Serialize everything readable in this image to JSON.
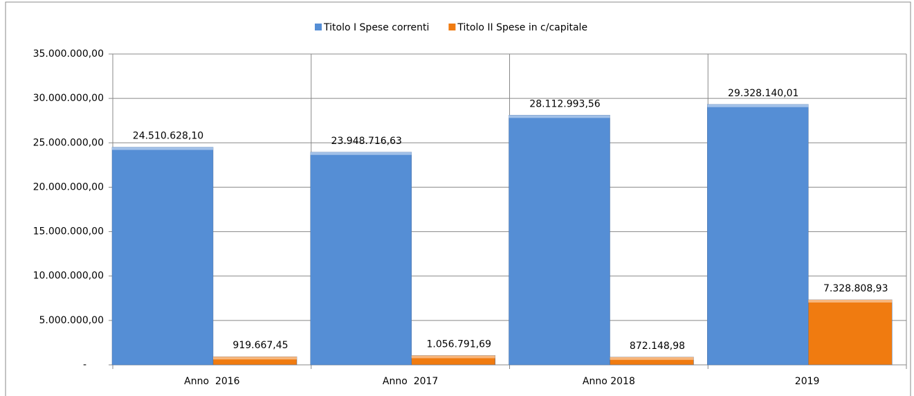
{
  "chart_data": {
    "type": "bar",
    "categories": [
      "Anno  2016",
      "Anno  2017",
      "Anno 2018",
      "2019"
    ],
    "series": [
      {
        "name": "Titolo I Spese correnti",
        "color": "#558ed5",
        "values": [
          24510628.1,
          23948716.63,
          28112993.56,
          29328140.01
        ],
        "value_labels": [
          "24.510.628,10",
          "23.948.716,63",
          "28.112.993,56",
          "29.328.140,01"
        ]
      },
      {
        "name": "Titolo II Spese in c/capitale",
        "color": "#f07b10",
        "values": [
          919667.45,
          1056791.69,
          872148.98,
          7328808.93
        ],
        "value_labels": [
          "919.667,45",
          "1.056.791,69",
          "872.148,98",
          "7.328.808,93"
        ]
      }
    ],
    "ylim": [
      0,
      35000000
    ],
    "yticks": [
      {
        "value": 0,
        "label": "-"
      },
      {
        "value": 5000000,
        "label": "5.000.000,00"
      },
      {
        "value": 10000000,
        "label": "10.000.000,00"
      },
      {
        "value": 15000000,
        "label": "15.000.000,00"
      },
      {
        "value": 20000000,
        "label": "20.000.000,00"
      },
      {
        "value": 25000000,
        "label": "25.000.000,00"
      },
      {
        "value": 30000000,
        "label": "30.000.000,00"
      },
      {
        "value": 35000000,
        "label": "35.000.000,00"
      }
    ],
    "grid": true,
    "legend": "top"
  }
}
